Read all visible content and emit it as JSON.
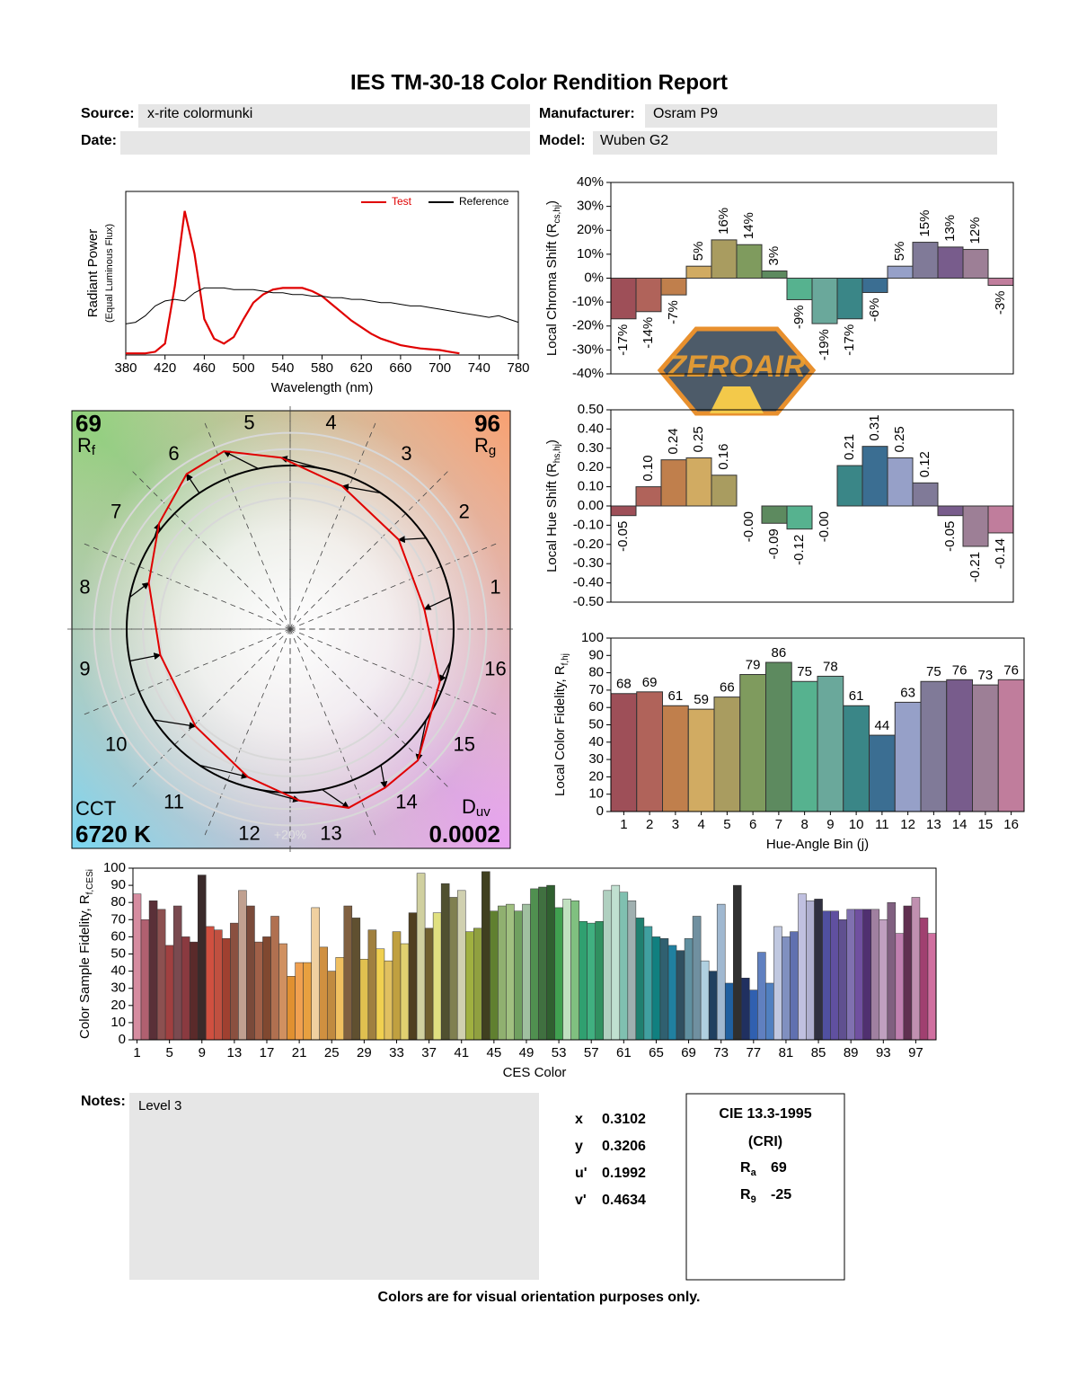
{
  "title": "IES TM-30-18 Color Rendition Report",
  "fields": [
    {
      "label": "Source:",
      "value": "x-rite colormunki"
    },
    {
      "label": "Manufacturer:",
      "value": "Osram P9"
    },
    {
      "label": "Date:"
    },
    {
      "label": "Model:",
      "value": "Wuben G2"
    }
  ],
  "chart_data": [
    {
      "type": "line",
      "xlabel": "Wavelength (nm)",
      "ylabel": "Radiant Power",
      "ylabel_note": "(Equal Luminous Flux)",
      "x": [
        380,
        390,
        400,
        410,
        420,
        430,
        440,
        450,
        460,
        470,
        480,
        490,
        500,
        510,
        520,
        530,
        540,
        550,
        560,
        570,
        580,
        590,
        600,
        610,
        620,
        630,
        640,
        650,
        660,
        670,
        680,
        690,
        700,
        710,
        720,
        730,
        740,
        750,
        760,
        770,
        780
      ],
      "xlim": [
        380,
        780
      ],
      "xticks": [
        380,
        420,
        460,
        500,
        540,
        580,
        620,
        660,
        700,
        740,
        780
      ],
      "ylim": [
        0,
        1
      ],
      "legend": "upper right",
      "series": [
        {
          "name": "Test",
          "color": "#e00000",
          "values": [
            0.01,
            0.01,
            0.01,
            0.02,
            0.07,
            0.42,
            0.88,
            0.62,
            0.22,
            0.1,
            0.07,
            0.11,
            0.22,
            0.32,
            0.37,
            0.4,
            0.41,
            0.41,
            0.41,
            0.39,
            0.36,
            0.31,
            0.26,
            0.21,
            0.17,
            0.13,
            0.1,
            0.08,
            0.06,
            0.05,
            0.04,
            0.035,
            0.03,
            0.02,
            0.01,
            null,
            null,
            null,
            null,
            null,
            null
          ]
        },
        {
          "name": "Reference",
          "color": "#000000",
          "values": [
            0.19,
            0.2,
            0.24,
            0.3,
            0.33,
            0.34,
            0.33,
            0.38,
            0.41,
            0.41,
            0.41,
            0.4,
            0.4,
            0.4,
            0.39,
            0.38,
            0.38,
            0.37,
            0.37,
            0.36,
            0.36,
            0.35,
            0.35,
            0.34,
            0.34,
            0.33,
            0.32,
            0.32,
            0.31,
            0.3,
            0.3,
            0.29,
            0.28,
            0.27,
            0.26,
            0.25,
            0.24,
            0.23,
            0.24,
            0.22,
            0.2
          ]
        }
      ]
    },
    {
      "type": "bar",
      "ylabel_parts": [
        "Local Chroma Shift (R",
        "cs,hj",
        ")"
      ],
      "ylim": [
        -40,
        40
      ],
      "yticks": [
        {
          "value": 40,
          "label": "40%"
        },
        {
          "value": 30,
          "label": "30%"
        },
        {
          "value": 20,
          "label": "20%"
        },
        {
          "value": 10,
          "label": "10%"
        },
        {
          "value": 0,
          "label": "0%"
        },
        {
          "value": -10,
          "label": "-10%"
        },
        {
          "value": -20,
          "label": "-20%"
        },
        {
          "value": -30,
          "label": "-30%"
        },
        {
          "value": -40,
          "label": "-40%"
        }
      ],
      "values": [
        -17,
        -14,
        -7,
        5,
        16,
        14,
        3,
        -9,
        -19,
        -17,
        -6,
        5,
        15,
        13,
        12,
        -3
      ],
      "value_labels": [
        "-17%",
        "-14%",
        "-7%",
        "5%",
        "16%",
        "14%",
        "3%",
        "-9%",
        "-19%",
        "-17%",
        "-6%",
        "5%",
        "15%",
        "13%",
        "12%",
        "-3%"
      ],
      "colors": [
        "#9e4f58",
        "#b0635a",
        "#c07f4c",
        "#d1ab62",
        "#a99c60",
        "#7f9b5e",
        "#5d8a5f",
        "#56b28f",
        "#6aa89b",
        "#3a8687",
        "#3b6e92",
        "#96a0c8",
        "#807a98",
        "#785c8c",
        "#9d7f96",
        "#c07d9c"
      ]
    },
    {
      "type": "bar",
      "ylabel_parts": [
        "Local Hue Shift (R",
        "hs,hj",
        ")"
      ],
      "ylim": [
        -0.5,
        0.5
      ],
      "yticks": [
        {
          "value": 0.5,
          "label": "0.50"
        },
        {
          "value": 0.4,
          "label": "0.40"
        },
        {
          "value": 0.3,
          "label": "0.30"
        },
        {
          "value": 0.2,
          "label": "0.20"
        },
        {
          "value": 0.1,
          "label": "0.10"
        },
        {
          "value": 0,
          "label": "0.00"
        },
        {
          "value": -0.1,
          "label": "-0.10"
        },
        {
          "value": -0.2,
          "label": "-0.20"
        },
        {
          "value": -0.3,
          "label": "-0.30"
        },
        {
          "value": -0.4,
          "label": "-0.40"
        },
        {
          "value": -0.5,
          "label": "-0.50"
        }
      ],
      "values": [
        -0.05,
        0.1,
        0.24,
        0.25,
        0.16,
        0,
        -0.09,
        -0.12,
        0,
        0.21,
        0.31,
        0.25,
        0.12,
        -0.05,
        -0.21,
        -0.14
      ],
      "value_labels": [
        "-0.05",
        "0.10",
        "0.24",
        "0.25",
        "0.16",
        "-0.00",
        "-0.09",
        "-0.12",
        "-0.00",
        "0.21",
        "0.31",
        "0.25",
        "0.12",
        "-0.05",
        "-0.21",
        "-0.14"
      ],
      "colors": [
        "#9e4f58",
        "#b0635a",
        "#c07f4c",
        "#d1ab62",
        "#a99c60",
        "#7f9b5e",
        "#5d8a5f",
        "#56b28f",
        "#6aa89b",
        "#3a8687",
        "#3b6e92",
        "#96a0c8",
        "#807a98",
        "#785c8c",
        "#9d7f96",
        "#c07d9c"
      ]
    },
    {
      "type": "bar",
      "xlabel": "Hue-Angle Bin (j)",
      "ylabel_parts": [
        "Local Color Fidelity, R",
        "f,hj",
        ""
      ],
      "ylim": [
        0,
        100
      ],
      "yticks": [
        0,
        10,
        20,
        30,
        40,
        50,
        60,
        70,
        80,
        90,
        100
      ],
      "categories": [
        "1",
        "2",
        "3",
        "4",
        "5",
        "6",
        "7",
        "8",
        "9",
        "10",
        "11",
        "12",
        "13",
        "14",
        "15",
        "16"
      ],
      "values": [
        68,
        69,
        61,
        59,
        66,
        79,
        86,
        75,
        78,
        61,
        44,
        63,
        75,
        76,
        73,
        76
      ],
      "colors": [
        "#9e4f58",
        "#b0635a",
        "#c07f4c",
        "#d1ab62",
        "#a99c60",
        "#7f9b5e",
        "#5d8a5f",
        "#56b28f",
        "#6aa89b",
        "#3a8687",
        "#3b6e92",
        "#96a0c8",
        "#807a98",
        "#785c8c",
        "#9d7f96",
        "#c07d9c"
      ]
    },
    {
      "type": "vector",
      "rf": {
        "value": 69,
        "label": "R",
        "sub": "f"
      },
      "rg": {
        "value": 96,
        "label": "R",
        "sub": "g"
      },
      "cct": {
        "label": "CCT",
        "value": "6720 K"
      },
      "duv": {
        "label": "D",
        "sub": "uv",
        "value": 0.0002
      },
      "ring_label": "+20%",
      "test_color": "#e00000",
      "reference_color": "#000000"
    },
    {
      "type": "bar",
      "xlabel": "CES Color",
      "ylabel_parts": [
        "Color Sample Fidelity, R",
        "f,CESi",
        ""
      ],
      "ylim": [
        0,
        100
      ],
      "yticks": [
        0,
        10,
        20,
        30,
        40,
        50,
        60,
        70,
        80,
        90,
        100
      ],
      "categories": [
        "1",
        null,
        null,
        null,
        "5",
        null,
        null,
        null,
        "9",
        null,
        null,
        null,
        "13",
        null,
        null,
        null,
        "17",
        null,
        null,
        null,
        "21",
        null,
        null,
        null,
        "25",
        null,
        null,
        null,
        "29",
        null,
        null,
        null,
        "33",
        null,
        null,
        null,
        "37",
        null,
        null,
        null,
        "41",
        null,
        null,
        null,
        "45",
        null,
        null,
        null,
        "49",
        null,
        null,
        null,
        "53",
        null,
        null,
        null,
        "57",
        null,
        null,
        null,
        "61",
        null,
        null,
        null,
        "65",
        null,
        null,
        null,
        "69",
        null,
        null,
        null,
        "73",
        null,
        null,
        null,
        "77",
        null,
        null,
        null,
        "81",
        null,
        null,
        null,
        "85",
        null,
        null,
        null,
        "89",
        null,
        null,
        null,
        "93",
        null,
        null,
        null,
        "97",
        null,
        null
      ],
      "values": [
        85,
        70,
        81,
        76,
        55,
        78,
        60,
        57,
        96,
        66,
        64,
        59,
        68,
        87,
        78,
        57,
        60,
        72,
        56,
        37,
        45,
        45,
        77,
        54,
        40,
        48,
        78,
        71,
        47,
        64,
        53,
        46,
        63,
        56,
        74,
        97,
        65,
        74,
        91,
        83,
        87,
        63,
        65,
        98,
        75,
        78,
        79,
        75,
        79,
        88,
        89,
        90,
        77,
        82,
        81,
        69,
        68,
        69,
        87,
        90,
        86,
        81,
        71,
        66,
        60,
        59,
        55,
        52,
        59,
        72,
        46,
        40,
        79,
        33,
        90,
        36,
        29,
        51,
        33,
        66,
        60,
        63,
        85,
        81,
        82,
        75,
        75,
        70,
        76,
        76,
        76,
        76,
        70,
        80,
        62,
        78,
        83,
        71,
        62
      ],
      "colors": [
        "#d68ca0",
        "#b06070",
        "#5a3038",
        "#8c5050",
        "#a04040",
        "#7a4a50",
        "#8a3a40",
        "#5a2a2a",
        "#3a2a2a",
        "#d05040",
        "#c05040",
        "#a04030",
        "#8a5040",
        "#c0a090",
        "#7a4a3a",
        "#a06048",
        "#804830",
        "#b07050",
        "#d09060",
        "#e09030",
        "#f0a050",
        "#e8a040",
        "#f0d0a0",
        "#d09040",
        "#c08a40",
        "#f0c060",
        "#806040",
        "#605030",
        "#e0c050",
        "#a08040",
        "#f0d050",
        "#e0c060",
        "#c0a040",
        "#e0d070",
        "#504020",
        "#d0d0a0",
        "#706030",
        "#e0e080",
        "#505030",
        "#808050",
        "#d0d0b0",
        "#a0b040",
        "#90a040",
        "#404020",
        "#608030",
        "#90b070",
        "#a0c080",
        "#70a060",
        "#a0c0a0",
        "#509050",
        "#407040",
        "#306030",
        "#40a050",
        "#c0e0c0",
        "#80c080",
        "#30a070",
        "#40b080",
        "#309060",
        "#b0d0c0",
        "#c0e0d0",
        "#80c0b0",
        "#a0b0b0",
        "#208070",
        "#40a0a0",
        "#108080",
        "#306070",
        "#2080a0",
        "#305060",
        "#6090a0",
        "#7090a0",
        "#b0d0e0",
        "#204060",
        "#a0b8d0",
        "#2060a0",
        "#303030",
        "#203060",
        "#3060b0",
        "#6080c0",
        "#5080c0",
        "#c0c8e0",
        "#8090c0",
        "#6070b0",
        "#c0c0e0",
        "#b0b0d0",
        "#303040",
        "#5050a0",
        "#6050a0",
        "#605090",
        "#8070b0",
        "#7050a0",
        "#503070",
        "#a080a0",
        "#c0a0c0",
        "#806080",
        "#c080b0",
        "#603050",
        "#c090b0",
        "#a04070",
        "#d070a0"
      ]
    }
  ],
  "notes": {
    "label": "Notes:",
    "text": "Level 3"
  },
  "chromaticity": [
    {
      "label": "x",
      "value": 0.3102
    },
    {
      "label": "y",
      "value": 0.3206
    },
    {
      "label": "u'",
      "value": 0.1992
    },
    {
      "label": "v'",
      "value": 0.4634
    }
  ],
  "cri": {
    "title": "CIE 13.3-1995",
    "subtitle": "(CRI)",
    "rows": [
      {
        "label": "R",
        "sub": "a",
        "value": 69
      },
      {
        "label": "R",
        "sub": "9",
        "value": -25
      }
    ]
  },
  "footer": "Colors are for visual orientation purposes only.",
  "watermark": "ZEROAIR"
}
